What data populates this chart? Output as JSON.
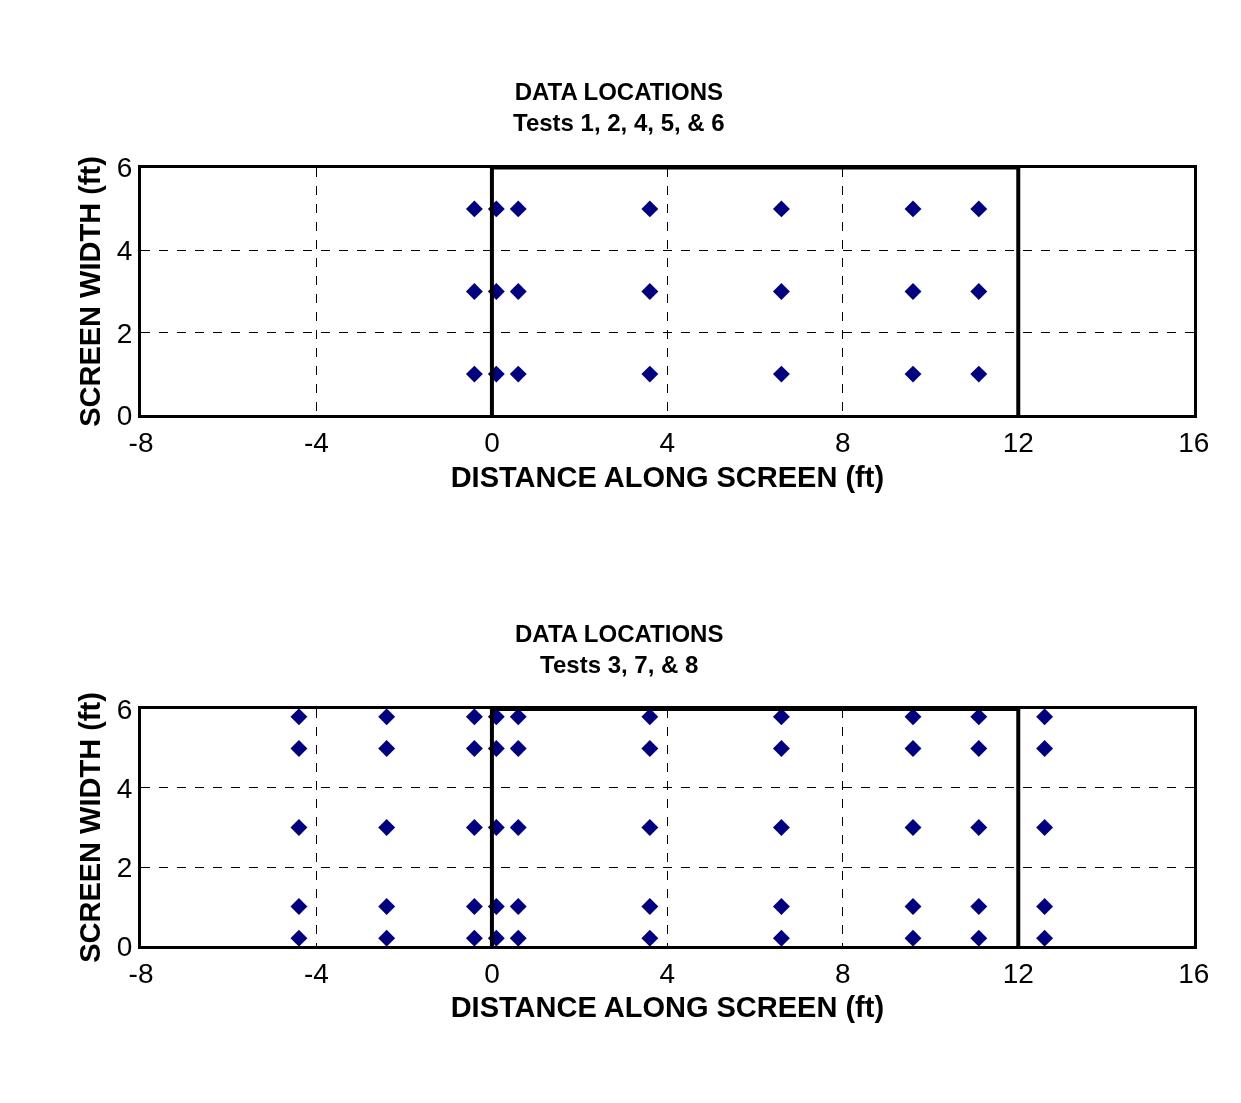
{
  "chart_data": [
    {
      "type": "scatter",
      "title": "DATA LOCATIONS",
      "subtitle": "Tests 1, 2, 4, 5, & 6",
      "xlabel": "DISTANCE ALONG SCREEN (ft)",
      "ylabel": "SCREEN WIDTH (ft)",
      "xlim": [
        -8,
        16
      ],
      "xticks": [
        -8,
        -4,
        0,
        4,
        8,
        12,
        16
      ],
      "ylim": [
        0,
        6
      ],
      "yticks": [
        0,
        2,
        4,
        6
      ],
      "grid": true,
      "marker": "diamond",
      "series": [
        {
          "color": "#000080",
          "x": [
            -0.4,
            0.1,
            0.6,
            3.6,
            6.6,
            9.6,
            11.1,
            -0.4,
            0.1,
            0.6,
            3.6,
            6.6,
            9.6,
            11.1,
            -0.4,
            0.1,
            0.6,
            3.6,
            6.6,
            9.6,
            11.1
          ],
          "values": [
            5,
            5,
            5,
            5,
            5,
            5,
            5,
            3,
            3,
            3,
            3,
            3,
            3,
            3,
            1,
            1,
            1,
            1,
            1,
            1,
            1
          ]
        },
        {
          "type": "line",
          "color": "#000000",
          "marker": "none",
          "line_style": "solid",
          "x": [
            0,
            0,
            12,
            12
          ],
          "values": [
            0,
            6,
            6,
            0
          ]
        }
      ]
    },
    {
      "type": "scatter",
      "title": "DATA LOCATIONS",
      "subtitle": "Tests 3, 7, & 8",
      "xlabel": "DISTANCE ALONG SCREEN (ft)",
      "ylabel": "SCREEN WIDTH (ft)",
      "xlim": [
        -8,
        16
      ],
      "xticks": [
        -8,
        -4,
        0,
        4,
        8,
        12,
        16
      ],
      "ylim": [
        0,
        6
      ],
      "yticks": [
        0,
        2,
        4,
        6
      ],
      "grid": true,
      "marker": "diamond",
      "series": [
        {
          "color": "#000080",
          "x": [
            -4.4,
            -2.4,
            -0.4,
            0.1,
            0.6,
            3.6,
            6.6,
            9.6,
            11.1,
            12.6,
            -4.4,
            -2.4,
            -0.4,
            0.1,
            0.6,
            3.6,
            6.6,
            9.6,
            11.1,
            12.6,
            -4.4,
            -2.4,
            -0.4,
            0.1,
            0.6,
            3.6,
            6.6,
            9.6,
            11.1,
            12.6,
            -4.4,
            -2.4,
            -0.4,
            0.1,
            0.6,
            3.6,
            6.6,
            9.6,
            11.1,
            12.6,
            -4.4,
            -2.4,
            -0.4,
            0.1,
            0.6,
            3.6,
            6.6,
            9.6,
            11.1,
            12.6
          ],
          "values": [
            5.8,
            5.8,
            5.8,
            5.8,
            5.8,
            5.8,
            5.8,
            5.8,
            5.8,
            5.8,
            5,
            5,
            5,
            5,
            5,
            5,
            5,
            5,
            5,
            5,
            3,
            3,
            3,
            3,
            3,
            3,
            3,
            3,
            3,
            3,
            1,
            1,
            1,
            1,
            1,
            1,
            1,
            1,
            1,
            1,
            0.2,
            0.2,
            0.2,
            0.2,
            0.2,
            0.2,
            0.2,
            0.2,
            0.2,
            0.2
          ]
        },
        {
          "type": "line",
          "color": "#000000",
          "marker": "none",
          "line_style": "solid",
          "x": [
            0,
            0,
            12,
            12
          ],
          "values": [
            0,
            6,
            6,
            0
          ]
        }
      ]
    }
  ]
}
